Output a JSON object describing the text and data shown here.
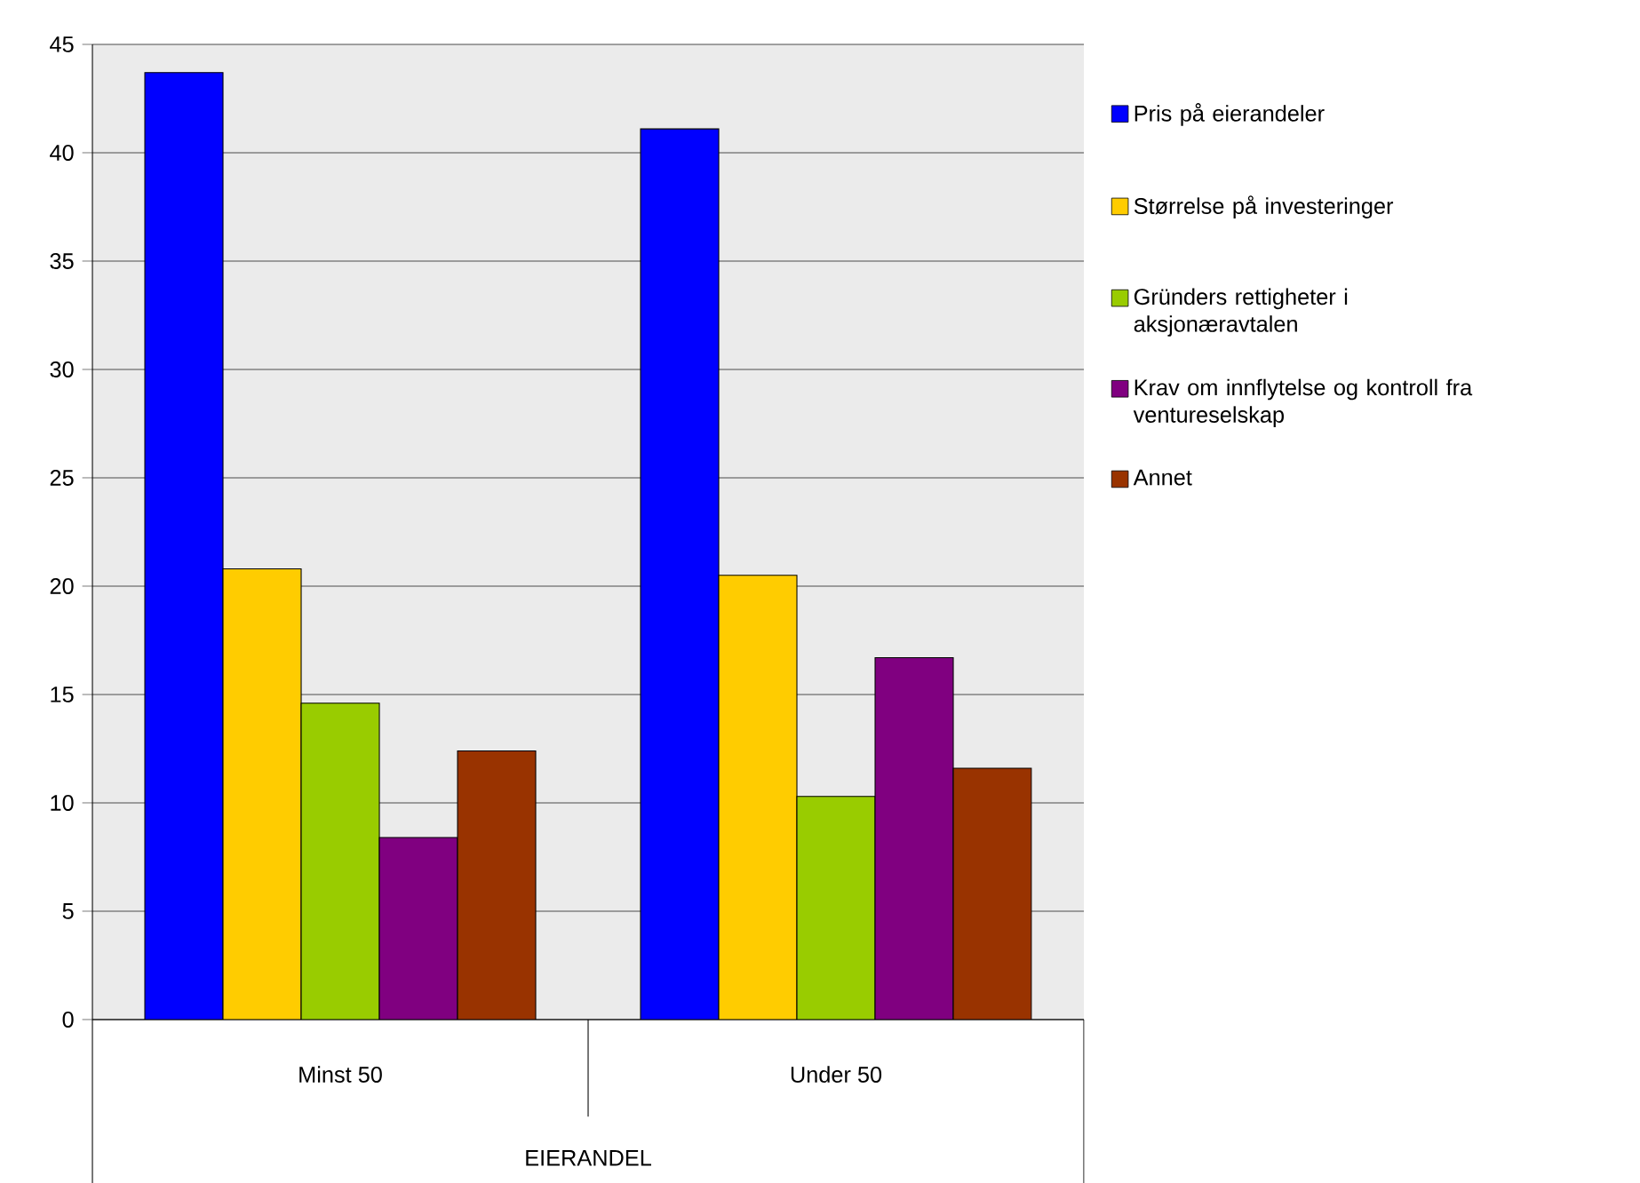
{
  "chart_data": {
    "type": "bar",
    "xlabel": "EIERANDEL",
    "categories": [
      "Minst 50",
      "Under 50"
    ],
    "series": [
      {
        "name": "Pris på eierandeler",
        "color": "#0000ff",
        "values": [
          43.7,
          41.1
        ]
      },
      {
        "name": "Størrelse på investeringer",
        "color": "#ffcc00",
        "values": [
          20.8,
          20.5
        ]
      },
      {
        "name": "Gründers rettigheter i aksjonæravtalen",
        "color": "#99cc00",
        "values": [
          14.6,
          10.3
        ]
      },
      {
        "name": "Krav om innflytelse og kontroll fra ventureselskap",
        "color": "#800080",
        "values": [
          8.4,
          16.7
        ]
      },
      {
        "name": "Annet",
        "color": "#993300",
        "values": [
          12.4,
          11.6
        ]
      }
    ],
    "ylim": [
      0,
      45
    ],
    "yticks": [
      0,
      5,
      10,
      15,
      20,
      25,
      30,
      35,
      40,
      45
    ],
    "grid": "y",
    "legend": "right"
  }
}
